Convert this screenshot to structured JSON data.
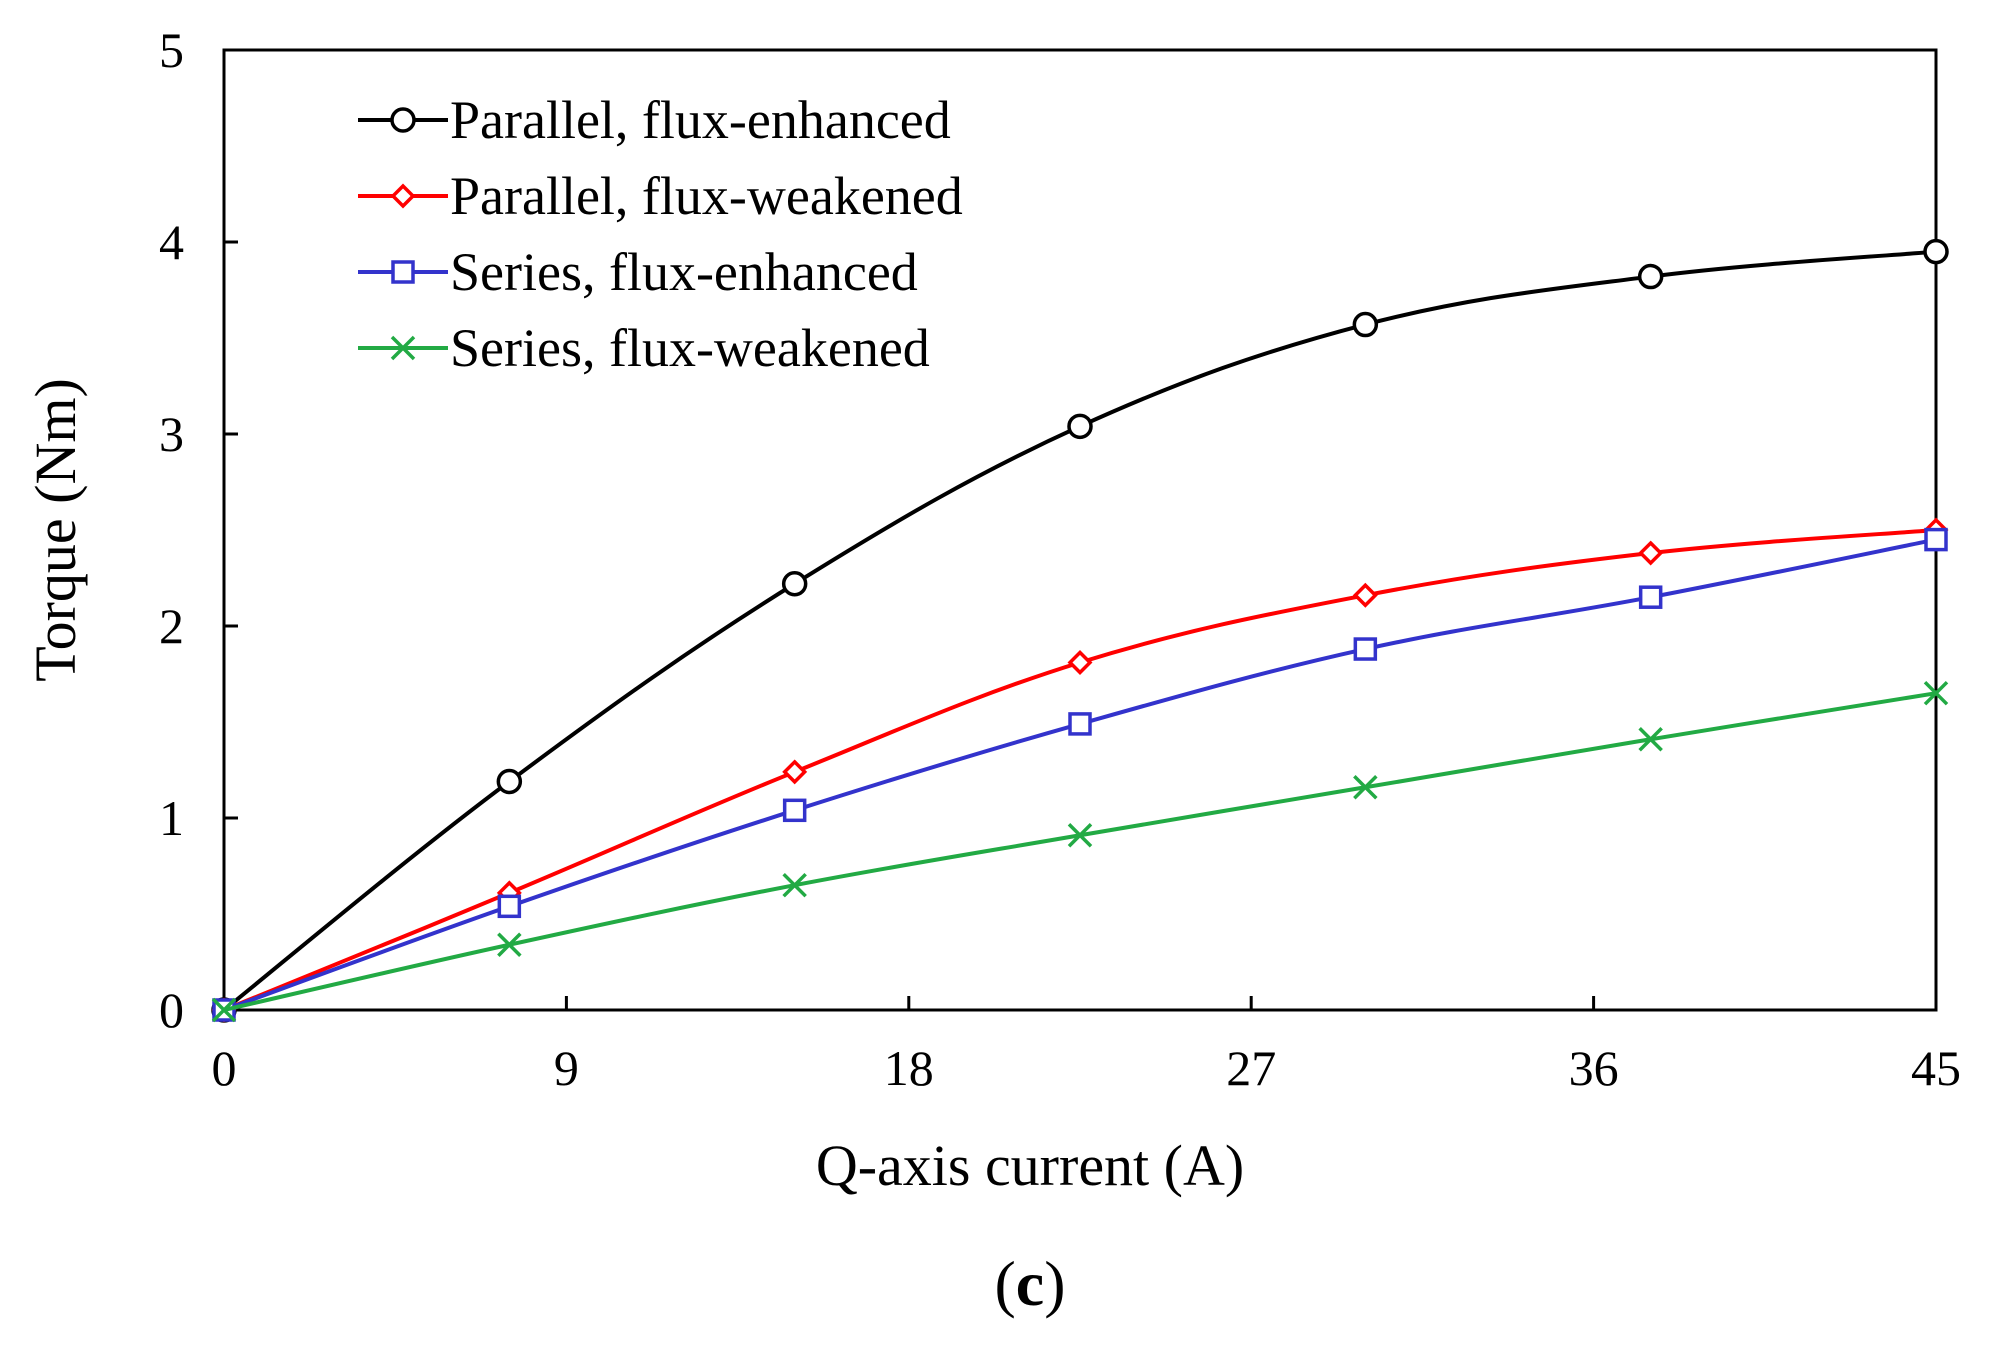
{
  "chart_data": {
    "type": "line",
    "title": "",
    "xlabel": "Q-axis current (A)",
    "ylabel": "Torque (Nm)",
    "caption_open": "(",
    "caption_letter": "c",
    "caption_close": ")",
    "xlim": [
      0,
      45
    ],
    "ylim": [
      0,
      5
    ],
    "xticks": [
      0,
      9,
      18,
      27,
      36,
      45
    ],
    "yticks": [
      0,
      1,
      2,
      3,
      4,
      5
    ],
    "grid": false,
    "legend_position": "top-left",
    "x": [
      0,
      7.5,
      15,
      22.5,
      30,
      37.5,
      45
    ],
    "series": [
      {
        "name": "Parallel, flux-enhanced",
        "color": "#000000",
        "marker": "circle",
        "values": [
          0,
          1.19,
          2.22,
          3.04,
          3.57,
          3.82,
          3.95
        ]
      },
      {
        "name": "Parallel, flux-weakened",
        "color": "#ff0000",
        "marker": "diamond",
        "values": [
          0,
          0.61,
          1.24,
          1.81,
          2.16,
          2.38,
          2.5
        ]
      },
      {
        "name": "Series, flux-enhanced",
        "color": "#3333cc",
        "marker": "square",
        "values": [
          0,
          0.54,
          1.04,
          1.49,
          1.88,
          2.15,
          2.45
        ]
      },
      {
        "name": "Series, flux-weakened",
        "color": "#22aa44",
        "marker": "x",
        "values": [
          0,
          0.34,
          0.65,
          0.91,
          1.16,
          1.41,
          1.65
        ]
      }
    ]
  }
}
